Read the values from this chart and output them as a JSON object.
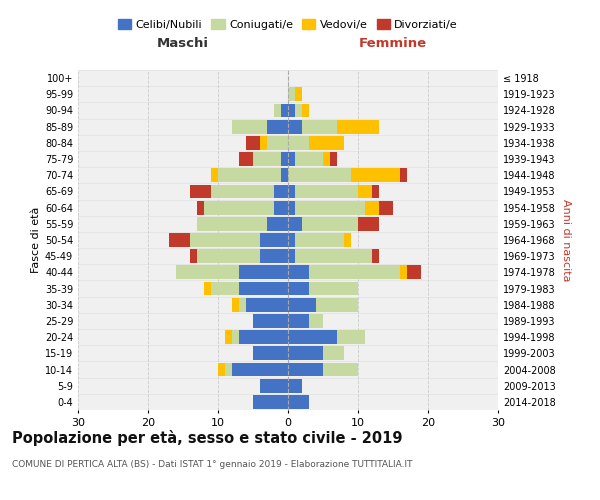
{
  "age_groups": [
    "0-4",
    "5-9",
    "10-14",
    "15-19",
    "20-24",
    "25-29",
    "30-34",
    "35-39",
    "40-44",
    "45-49",
    "50-54",
    "55-59",
    "60-64",
    "65-69",
    "70-74",
    "75-79",
    "80-84",
    "85-89",
    "90-94",
    "95-99",
    "100+"
  ],
  "birth_years": [
    "2014-2018",
    "2009-2013",
    "2004-2008",
    "1999-2003",
    "1994-1998",
    "1989-1993",
    "1984-1988",
    "1979-1983",
    "1974-1978",
    "1969-1973",
    "1964-1968",
    "1959-1963",
    "1954-1958",
    "1949-1953",
    "1944-1948",
    "1939-1943",
    "1934-1938",
    "1929-1933",
    "1924-1928",
    "1919-1923",
    "≤ 1918"
  ],
  "male": {
    "celibe": [
      5,
      4,
      8,
      5,
      7,
      5,
      6,
      7,
      7,
      4,
      4,
      3,
      2,
      2,
      1,
      1,
      0,
      3,
      1,
      0,
      0
    ],
    "coniugato": [
      0,
      0,
      1,
      0,
      1,
      0,
      1,
      4,
      9,
      9,
      10,
      10,
      10,
      9,
      9,
      4,
      3,
      5,
      1,
      0,
      0
    ],
    "vedovo": [
      0,
      0,
      1,
      0,
      1,
      0,
      1,
      1,
      0,
      0,
      0,
      0,
      0,
      0,
      1,
      0,
      1,
      0,
      0,
      0,
      0
    ],
    "divorziato": [
      0,
      0,
      0,
      0,
      0,
      0,
      0,
      0,
      0,
      1,
      3,
      0,
      1,
      3,
      0,
      2,
      2,
      0,
      0,
      0,
      0
    ]
  },
  "female": {
    "nubile": [
      3,
      2,
      5,
      5,
      7,
      3,
      4,
      3,
      3,
      1,
      1,
      2,
      1,
      1,
      0,
      1,
      0,
      2,
      1,
      0,
      0
    ],
    "coniugata": [
      0,
      0,
      5,
      3,
      4,
      2,
      6,
      7,
      13,
      11,
      7,
      8,
      10,
      9,
      9,
      4,
      3,
      5,
      1,
      1,
      0
    ],
    "vedova": [
      0,
      0,
      0,
      0,
      0,
      0,
      0,
      0,
      1,
      0,
      1,
      0,
      2,
      2,
      7,
      1,
      5,
      6,
      1,
      1,
      0
    ],
    "divorziata": [
      0,
      0,
      0,
      0,
      0,
      0,
      0,
      0,
      2,
      1,
      0,
      3,
      2,
      1,
      1,
      1,
      0,
      0,
      0,
      0,
      0
    ]
  },
  "colors": {
    "celibe": "#4472c4",
    "coniugato": "#c5d9a0",
    "vedovo": "#ffc000",
    "divorziato": "#c0392b"
  },
  "title": "Popolazione per età, sesso e stato civile - 2019",
  "subtitle": "COMUNE DI PERTICA ALTA (BS) - Dati ISTAT 1° gennaio 2019 - Elaborazione TUTTITALIA.IT",
  "xlabel_left": "Maschi",
  "xlabel_right": "Femmine",
  "ylabel_left": "Fasce di età",
  "ylabel_right": "Anni di nascita",
  "xlim": 30,
  "background_color": "#ffffff",
  "grid_color": "#cccccc"
}
